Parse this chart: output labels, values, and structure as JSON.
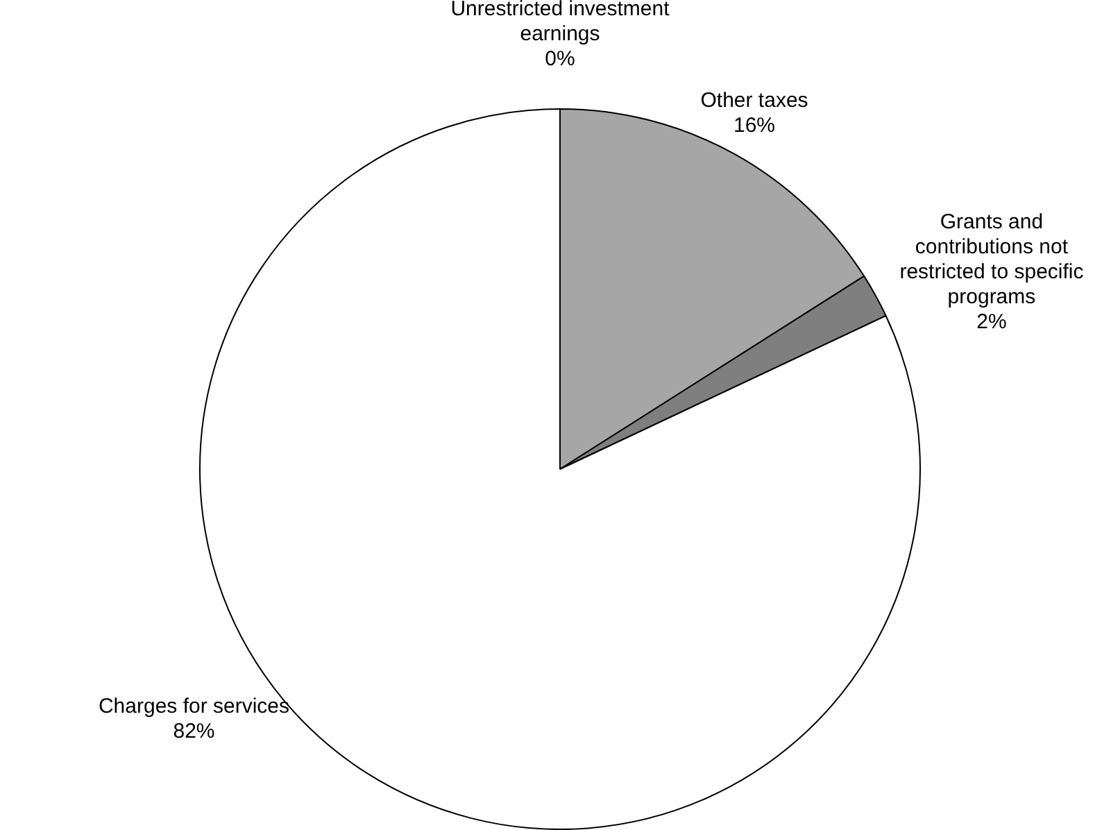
{
  "chart_data": {
    "type": "pie",
    "categories": [
      "Unrestricted investment earnings",
      "Other taxes",
      "Grants and contributions not restricted to specific programs",
      "Charges for services"
    ],
    "values": [
      0,
      16,
      2,
      82
    ],
    "colors": [
      "#c0c0c0",
      "#a6a6a6",
      "#7f7f7f",
      "#ffffff"
    ],
    "value_labels": [
      "0%",
      "16%",
      "2%",
      "82%"
    ],
    "legend": false
  }
}
